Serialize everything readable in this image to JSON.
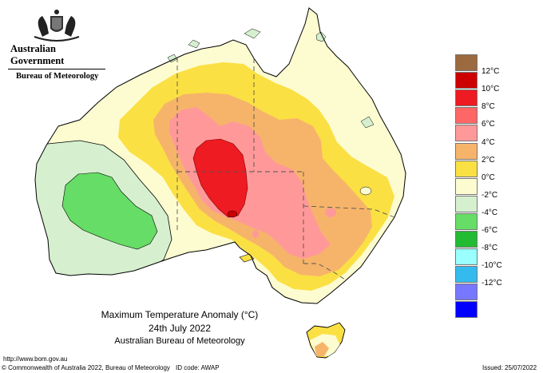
{
  "header": {
    "government": "Australian Government",
    "bureau": "Bureau of Meteorology"
  },
  "map": {
    "title": "Maximum Temperature Anomaly (°C)",
    "date": "24th July 2022",
    "source": "Australian Bureau of Meteorology",
    "colors": {
      "coast": "#000000",
      "state_border": "#555555",
      "ocean": "#ffffff"
    }
  },
  "legend": {
    "items": [
      {
        "label": "",
        "color": "#9b6a3f"
      },
      {
        "label": "12°C",
        "color": "#cc0000"
      },
      {
        "label": "10°C",
        "color": "#ee1b22"
      },
      {
        "label": "8°C",
        "color": "#ff6666"
      },
      {
        "label": "6°C",
        "color": "#ff9999"
      },
      {
        "label": "4°C",
        "color": "#f6b46a"
      },
      {
        "label": "2°C",
        "color": "#fbe043"
      },
      {
        "label": "0°C",
        "color": "#fdfbd0"
      },
      {
        "label": "-2°C",
        "color": "#d6f0cf"
      },
      {
        "label": "-4°C",
        "color": "#66dd66"
      },
      {
        "label": "-6°C",
        "color": "#22bb33"
      },
      {
        "label": "-8°C",
        "color": "#99ffff"
      },
      {
        "label": "-10°C",
        "color": "#33bbee"
      },
      {
        "label": "-12°C",
        "color": "#7777ff"
      },
      {
        "label": "",
        "color": "#0000ff"
      }
    ]
  },
  "footer": {
    "url": "http://www.bom.gov.au",
    "copyright": "© Commonwealth of Australia 2022, Bureau of Meteorology",
    "id_code": "ID code: AWAP",
    "issued": "Issued: 25/07/2022"
  }
}
